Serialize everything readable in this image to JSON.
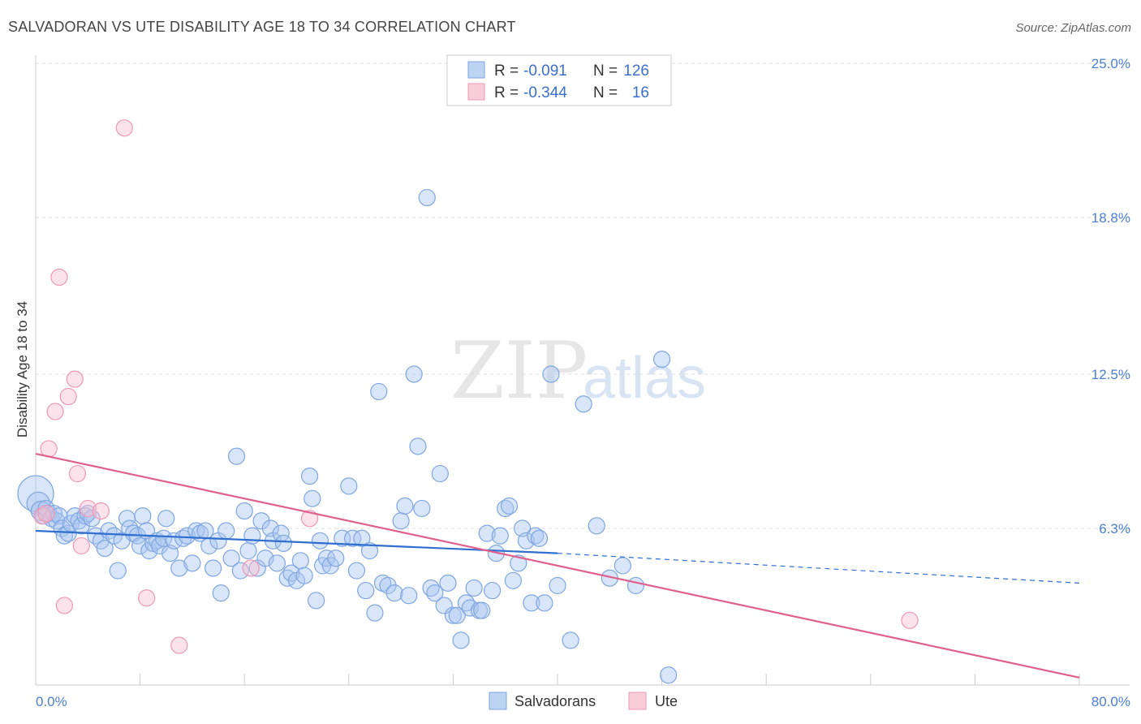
{
  "header": {
    "title": "SALVADORAN VS UTE DISABILITY AGE 18 TO 34 CORRELATION CHART",
    "source": "Source: ZipAtlas.com"
  },
  "watermark": {
    "zip": "ZIP",
    "atlas": "atlas"
  },
  "legend": {
    "rows": [
      {
        "r_label": "R =",
        "r_value": "-0.091",
        "n_label": "N =",
        "n_value": "126",
        "color": "#a9c6f0"
      },
      {
        "r_label": "R =",
        "r_value": "-0.344",
        "n_label": "N =",
        "n_value": "16",
        "color": "#f5b8cb"
      }
    ]
  },
  "bottom_legend": {
    "items": [
      {
        "label": "Salvadorans",
        "color": "#a9c6f0"
      },
      {
        "label": "Ute",
        "color": "#f5b8cb"
      }
    ]
  },
  "chart_data": {
    "type": "scatter",
    "title": "SALVADORAN VS UTE DISABILITY AGE 18 TO 34 CORRELATION CHART",
    "ylabel": "Disability Age 18 to 34",
    "xlabel": "",
    "xlim": [
      0,
      80
    ],
    "ylim": [
      0,
      25
    ],
    "x_tick_labels": [
      "0.0%",
      "80.0%"
    ],
    "y_ticks": [
      6.3,
      12.5,
      18.8,
      25.0
    ],
    "y_tick_labels": [
      "6.3%",
      "12.5%",
      "18.8%",
      "25.0%"
    ],
    "grid": "horizontal dashed",
    "legend_position": "top-center",
    "colors": {
      "salvadorans": "#6f9fe0",
      "ute": "#ee8fae",
      "salvadorans_line": "#2f6fd0",
      "ute_line": "#e0608d"
    },
    "series": [
      {
        "name": "Salvadorans",
        "r": -0.091,
        "n": 126,
        "trend": {
          "x0": 0,
          "y0": 6.2,
          "x1": 40,
          "y1": 5.3,
          "dashed_to_x": 80,
          "dashed_to_y": 4.1
        },
        "points": [
          [
            0.0,
            7.7,
            22
          ],
          [
            0.2,
            7.3,
            14
          ],
          [
            0.4,
            7.0,
            12
          ],
          [
            0.6,
            6.8,
            10
          ],
          [
            0.8,
            7.1,
            10
          ],
          [
            1.0,
            6.9,
            10
          ],
          [
            1.2,
            6.7,
            10
          ],
          [
            1.4,
            6.9,
            10
          ],
          [
            1.6,
            6.6,
            10
          ],
          [
            1.8,
            6.8,
            10
          ],
          [
            2.0,
            6.3,
            10
          ],
          [
            2.2,
            6.0,
            10
          ],
          [
            2.5,
            6.1,
            10
          ],
          [
            2.7,
            6.5,
            10
          ],
          [
            3.0,
            6.8,
            10
          ],
          [
            3.3,
            6.6,
            10
          ],
          [
            3.5,
            6.4,
            10
          ],
          [
            3.8,
            6.8,
            10
          ],
          [
            4.0,
            6.9,
            10
          ],
          [
            4.3,
            6.7,
            10
          ],
          [
            4.6,
            6.0,
            10
          ],
          [
            5.0,
            5.8,
            10
          ],
          [
            5.3,
            5.5,
            10
          ],
          [
            5.6,
            6.2,
            10
          ],
          [
            6.0,
            6.0,
            10
          ],
          [
            6.3,
            4.6,
            10
          ],
          [
            6.6,
            5.8,
            10
          ],
          [
            7.0,
            6.7,
            10
          ],
          [
            7.2,
            6.3,
            10
          ],
          [
            7.5,
            6.1,
            10
          ],
          [
            7.8,
            6.0,
            10
          ],
          [
            8.0,
            5.6,
            10
          ],
          [
            8.2,
            6.8,
            10
          ],
          [
            8.5,
            6.2,
            10
          ],
          [
            8.7,
            5.4,
            10
          ],
          [
            9.0,
            5.7,
            10
          ],
          [
            9.3,
            5.8,
            10
          ],
          [
            9.5,
            5.6,
            10
          ],
          [
            9.8,
            5.9,
            10
          ],
          [
            10.0,
            6.7,
            10
          ],
          [
            10.3,
            5.3,
            10
          ],
          [
            10.6,
            5.8,
            10
          ],
          [
            11.0,
            4.7,
            10
          ],
          [
            11.3,
            5.9,
            10
          ],
          [
            11.6,
            6.0,
            10
          ],
          [
            12.0,
            4.9,
            10
          ],
          [
            12.3,
            6.2,
            10
          ],
          [
            12.6,
            6.1,
            10
          ],
          [
            13.0,
            6.2,
            10
          ],
          [
            13.3,
            5.6,
            10
          ],
          [
            13.6,
            4.7,
            10
          ],
          [
            14.0,
            5.8,
            10
          ],
          [
            14.2,
            3.7,
            10
          ],
          [
            14.6,
            6.2,
            10
          ],
          [
            15.0,
            5.1,
            10
          ],
          [
            15.4,
            9.2,
            10
          ],
          [
            15.7,
            4.6,
            10
          ],
          [
            16.0,
            7.0,
            10
          ],
          [
            16.3,
            5.4,
            10
          ],
          [
            16.6,
            6.0,
            10
          ],
          [
            17.0,
            4.7,
            10
          ],
          [
            17.3,
            6.6,
            10
          ],
          [
            17.6,
            5.1,
            10
          ],
          [
            18.0,
            6.3,
            10
          ],
          [
            18.2,
            5.8,
            10
          ],
          [
            18.5,
            4.9,
            10
          ],
          [
            18.8,
            6.1,
            10
          ],
          [
            19.0,
            5.7,
            10
          ],
          [
            19.3,
            4.3,
            10
          ],
          [
            19.6,
            4.5,
            10
          ],
          [
            20.0,
            4.2,
            10
          ],
          [
            20.3,
            5.0,
            10
          ],
          [
            20.6,
            4.4,
            10
          ],
          [
            21.0,
            8.4,
            10
          ],
          [
            21.2,
            7.5,
            10
          ],
          [
            21.5,
            3.4,
            10
          ],
          [
            21.8,
            5.8,
            10
          ],
          [
            22.0,
            4.8,
            10
          ],
          [
            22.3,
            5.1,
            10
          ],
          [
            22.6,
            4.8,
            10
          ],
          [
            23.0,
            5.1,
            10
          ],
          [
            23.5,
            5.9,
            10
          ],
          [
            24.0,
            8.0,
            10
          ],
          [
            24.3,
            5.9,
            10
          ],
          [
            24.6,
            4.6,
            10
          ],
          [
            25.0,
            5.9,
            10
          ],
          [
            25.3,
            3.8,
            10
          ],
          [
            25.6,
            5.4,
            10
          ],
          [
            26.0,
            2.9,
            10
          ],
          [
            26.3,
            11.8,
            10
          ],
          [
            26.6,
            4.1,
            10
          ],
          [
            27.0,
            4.0,
            10
          ],
          [
            27.5,
            3.7,
            10
          ],
          [
            28.0,
            6.6,
            10
          ],
          [
            28.3,
            7.2,
            10
          ],
          [
            28.6,
            3.6,
            10
          ],
          [
            29.0,
            12.5,
            10
          ],
          [
            29.3,
            9.6,
            10
          ],
          [
            29.6,
            7.1,
            10
          ],
          [
            30.0,
            19.6,
            10
          ],
          [
            30.3,
            3.9,
            10
          ],
          [
            30.6,
            3.7,
            10
          ],
          [
            31.0,
            8.5,
            10
          ],
          [
            31.3,
            3.2,
            10
          ],
          [
            31.6,
            4.1,
            10
          ],
          [
            32.0,
            2.8,
            10
          ],
          [
            32.3,
            2.8,
            10
          ],
          [
            32.6,
            1.8,
            10
          ],
          [
            33.0,
            3.3,
            10
          ],
          [
            33.3,
            3.1,
            10
          ],
          [
            33.6,
            3.9,
            10
          ],
          [
            34.0,
            3.0,
            10
          ],
          [
            34.2,
            3.0,
            10
          ],
          [
            34.6,
            6.1,
            10
          ],
          [
            35.0,
            3.8,
            10
          ],
          [
            35.3,
            5.3,
            10
          ],
          [
            35.6,
            6.0,
            10
          ],
          [
            36.0,
            7.1,
            10
          ],
          [
            36.3,
            7.2,
            10
          ],
          [
            36.6,
            4.2,
            10
          ],
          [
            37.0,
            4.9,
            10
          ],
          [
            37.3,
            6.3,
            10
          ],
          [
            37.6,
            5.8,
            10
          ],
          [
            38.0,
            3.3,
            10
          ],
          [
            38.3,
            6.0,
            10
          ],
          [
            38.6,
            5.9,
            10
          ],
          [
            39.0,
            3.3,
            10
          ],
          [
            39.5,
            12.5,
            10
          ],
          [
            40.0,
            4.0,
            10
          ],
          [
            41.0,
            1.8,
            10
          ],
          [
            42.0,
            11.3,
            10
          ],
          [
            43.0,
            6.4,
            10
          ],
          [
            44.0,
            4.3,
            10
          ],
          [
            45.0,
            4.8,
            10
          ],
          [
            46.0,
            4.0,
            10
          ],
          [
            48.0,
            13.1,
            10
          ],
          [
            48.5,
            0.4,
            10
          ]
        ]
      },
      {
        "name": "Ute",
        "r": -0.344,
        "n": 16,
        "trend": {
          "x0": 0,
          "y0": 9.3,
          "x1": 80,
          "y1": 0.3
        },
        "points": [
          [
            0.5,
            6.8,
            10
          ],
          [
            0.8,
            6.9,
            10
          ],
          [
            1.0,
            9.5,
            10
          ],
          [
            1.5,
            11.0,
            10
          ],
          [
            1.8,
            16.4,
            10
          ],
          [
            2.2,
            3.2,
            10
          ],
          [
            2.5,
            11.6,
            10
          ],
          [
            3.0,
            12.3,
            10
          ],
          [
            3.2,
            8.5,
            10
          ],
          [
            3.5,
            5.6,
            10
          ],
          [
            4.0,
            7.1,
            10
          ],
          [
            5.0,
            7.0,
            10
          ],
          [
            6.8,
            22.4,
            10
          ],
          [
            8.5,
            3.5,
            10
          ],
          [
            11.0,
            1.6,
            10
          ],
          [
            16.5,
            4.7,
            10
          ],
          [
            21.0,
            6.7,
            10
          ],
          [
            67.0,
            2.6,
            10
          ]
        ]
      }
    ]
  }
}
